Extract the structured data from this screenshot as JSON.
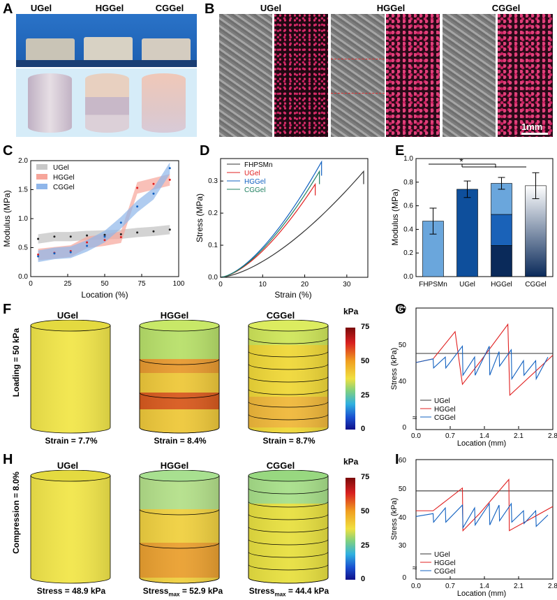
{
  "panels": {
    "A": "A",
    "B": "B",
    "C": "C",
    "D": "D",
    "E": "E",
    "F": "F",
    "G": "G",
    "H": "H",
    "I": "I"
  },
  "gels": [
    "UGel",
    "HGGel",
    "CGGel"
  ],
  "panelB": {
    "scale_bar": "1mm"
  },
  "panelC": {
    "xlabel": "Location (%)",
    "ylabel": "Modulus (MPa)",
    "xticks": [
      "0",
      "25",
      "50",
      "75",
      "100"
    ],
    "yticks": [
      "0.0",
      "0.5",
      "1.0",
      "1.5",
      "2.0"
    ],
    "legend": [
      "UGel",
      "HGGel",
      "CGGel"
    ]
  },
  "panelD": {
    "xlabel": "Strain (%)",
    "ylabel": "Stress (MPa)",
    "xticks": [
      "0",
      "10",
      "20",
      "30"
    ],
    "yticks": [
      "0.0",
      "0.1",
      "0.2",
      "0.3"
    ],
    "legend": [
      "FHPSMn",
      "UGel",
      "HGGel",
      "CGGel"
    ]
  },
  "panelE": {
    "ylabel": "Modulus (MPa)",
    "sig": "*",
    "categories": [
      "FHPSMn",
      "UGel",
      "HGGel",
      "CGGel"
    ],
    "yticks": [
      "0.0",
      "0.2",
      "0.4",
      "0.6",
      "0.8",
      "1.0"
    ]
  },
  "panelF": {
    "side_label": "Loading = 50 kPa",
    "captions": [
      "Strain = 7.7%",
      "Strain = 8.4%",
      "Strain = 8.7%"
    ],
    "colorbar": {
      "unit": "kPa",
      "ticks": [
        "75",
        "50",
        "25",
        "0"
      ]
    }
  },
  "panelG": {
    "xlabel": "Location (mm)",
    "ylabel": "Stress (kPa)",
    "xticks": [
      "0.0",
      "0.7",
      "1.4",
      "2.1",
      "2.8"
    ],
    "yticks": [
      "60",
      "50",
      "40",
      "0"
    ],
    "legend": [
      "UGel",
      "HGGel",
      "CGGel"
    ]
  },
  "panelH": {
    "side_label": "Compression = 8.0%",
    "captions": [
      "Stress = 48.9 kPa",
      "Stress",
      "max",
      " = 52.9 kPa",
      "Stress",
      "max",
      " = 44.4 kPa"
    ],
    "colorbar": {
      "unit": "kPa",
      "ticks": [
        "75",
        "50",
        "25",
        "0"
      ]
    }
  },
  "panelI": {
    "xlabel": "Location (mm)",
    "ylabel": "Stress (kPa)",
    "xticks": [
      "0.0",
      "0.7",
      "1.4",
      "2.1",
      "2.8"
    ],
    "yticks": [
      "60",
      "50",
      "40",
      "30",
      "0"
    ],
    "legend": [
      "UGel",
      "HGGel",
      "CGGel"
    ]
  },
  "colors": {
    "ugel": "#333333",
    "hggel": "#e02020",
    "cggel": "#1060c0",
    "fhpsmn": "#333333",
    "cg_green": "#208060"
  },
  "chart_data": [
    {
      "type": "scatter",
      "title": "C",
      "xlabel": "Location (%)",
      "ylabel": "Modulus (MPa)",
      "xlim": [
        0,
        100
      ],
      "ylim": [
        0,
        2.0
      ],
      "series": [
        {
          "name": "UGel",
          "x": [
            5,
            16,
            27,
            38,
            50,
            61,
            72,
            83,
            94
          ],
          "values": [
            0.65,
            0.69,
            0.69,
            0.71,
            0.72,
            0.73,
            0.76,
            0.78,
            0.81
          ]
        },
        {
          "name": "HGGel",
          "x": [
            5,
            16,
            27,
            38,
            50,
            61,
            72,
            83,
            94
          ],
          "values": [
            0.38,
            0.41,
            0.44,
            0.59,
            0.63,
            0.68,
            1.53,
            1.6,
            1.67
          ]
        },
        {
          "name": "CGGel",
          "x": [
            5,
            16,
            27,
            38,
            50,
            61,
            72,
            83,
            94
          ],
          "values": [
            0.35,
            0.4,
            0.42,
            0.53,
            0.69,
            0.93,
            1.21,
            1.43,
            1.87
          ]
        }
      ]
    },
    {
      "type": "line",
      "title": "D",
      "xlabel": "Strain (%)",
      "ylabel": "Stress (MPa)",
      "xlim": [
        0,
        35
      ],
      "ylim": [
        0,
        0.37
      ],
      "series": [
        {
          "name": "FHPSMn",
          "x": [
            0,
            10,
            20,
            30,
            34
          ],
          "values": [
            0,
            0.06,
            0.16,
            0.27,
            0.33
          ]
        },
        {
          "name": "UGel",
          "x": [
            0,
            10,
            20,
            22.5
          ],
          "values": [
            0,
            0.09,
            0.23,
            0.29
          ]
        },
        {
          "name": "HGGel",
          "x": [
            0,
            10,
            20,
            24
          ],
          "values": [
            0,
            0.1,
            0.26,
            0.36
          ]
        },
        {
          "name": "CGGel",
          "x": [
            0,
            10,
            20,
            23.5
          ],
          "values": [
            0,
            0.1,
            0.26,
            0.33
          ]
        }
      ]
    },
    {
      "type": "bar",
      "title": "E",
      "ylabel": "Modulus (MPa)",
      "categories": [
        "FHPSMn",
        "UGel",
        "HGGel",
        "CGGel"
      ],
      "values": [
        0.47,
        0.74,
        0.79,
        0.77
      ],
      "errors": [
        0.11,
        0.07,
        0.05,
        0.11
      ],
      "ylim": [
        0,
        1.0
      ]
    },
    {
      "type": "line",
      "title": "G",
      "xlabel": "Location (mm)",
      "ylabel": "Stress (kPa)",
      "xlim": [
        0,
        2.8
      ],
      "series": [
        {
          "name": "UGel",
          "x": [
            0,
            2.8
          ],
          "values": [
            47.5,
            47.5
          ]
        },
        {
          "name": "HGGel",
          "x": [
            0,
            0.35,
            0.8,
            0.95,
            1.3,
            1.88,
            1.92,
            2.8
          ],
          "values": [
            45,
            46,
            53.5,
            39,
            45,
            55.5,
            36,
            47
          ]
        },
        {
          "name": "CGGel",
          "x": [
            0,
            0.35,
            0.36,
            0.6,
            0.61,
            0.95,
            0.96,
            1.2,
            1.21,
            1.5,
            1.51,
            1.7,
            1.71,
            1.95,
            1.96,
            2.2,
            2.21,
            2.45,
            2.46,
            2.7
          ],
          "values": [
            45,
            46,
            43.5,
            46.5,
            43.5,
            49.5,
            41.5,
            46.5,
            41.5,
            49.5,
            41.5,
            48,
            44,
            48.5,
            40.5,
            45.5,
            41.5,
            45.5,
            40.5,
            46.5
          ]
        }
      ]
    },
    {
      "type": "line",
      "title": "I",
      "xlabel": "Location (mm)",
      "ylabel": "Stress (kPa)",
      "xlim": [
        0,
        2.8
      ],
      "series": [
        {
          "name": "UGel",
          "x": [
            0,
            2.8
          ],
          "values": [
            49,
            49
          ]
        },
        {
          "name": "HGGel",
          "x": [
            0,
            0.35,
            0.95,
            0.96,
            1.3,
            1.9,
            1.91,
            2.8
          ],
          "values": [
            42,
            42,
            50,
            35,
            41,
            53,
            35,
            43.5
          ]
        },
        {
          "name": "CGGel",
          "x": [
            0,
            0.35,
            0.36,
            0.6,
            0.61,
            0.95,
            0.96,
            1.2,
            1.21,
            1.5,
            1.51,
            1.7,
            1.71,
            1.95,
            1.96,
            2.2,
            2.21,
            2.45,
            2.46,
            2.7
          ],
          "values": [
            40,
            41,
            38,
            43,
            38,
            44,
            36,
            43,
            37,
            44.5,
            37,
            44,
            38.5,
            44.5,
            38,
            42,
            37.5,
            42,
            36.5,
            40.5
          ]
        }
      ]
    }
  ]
}
